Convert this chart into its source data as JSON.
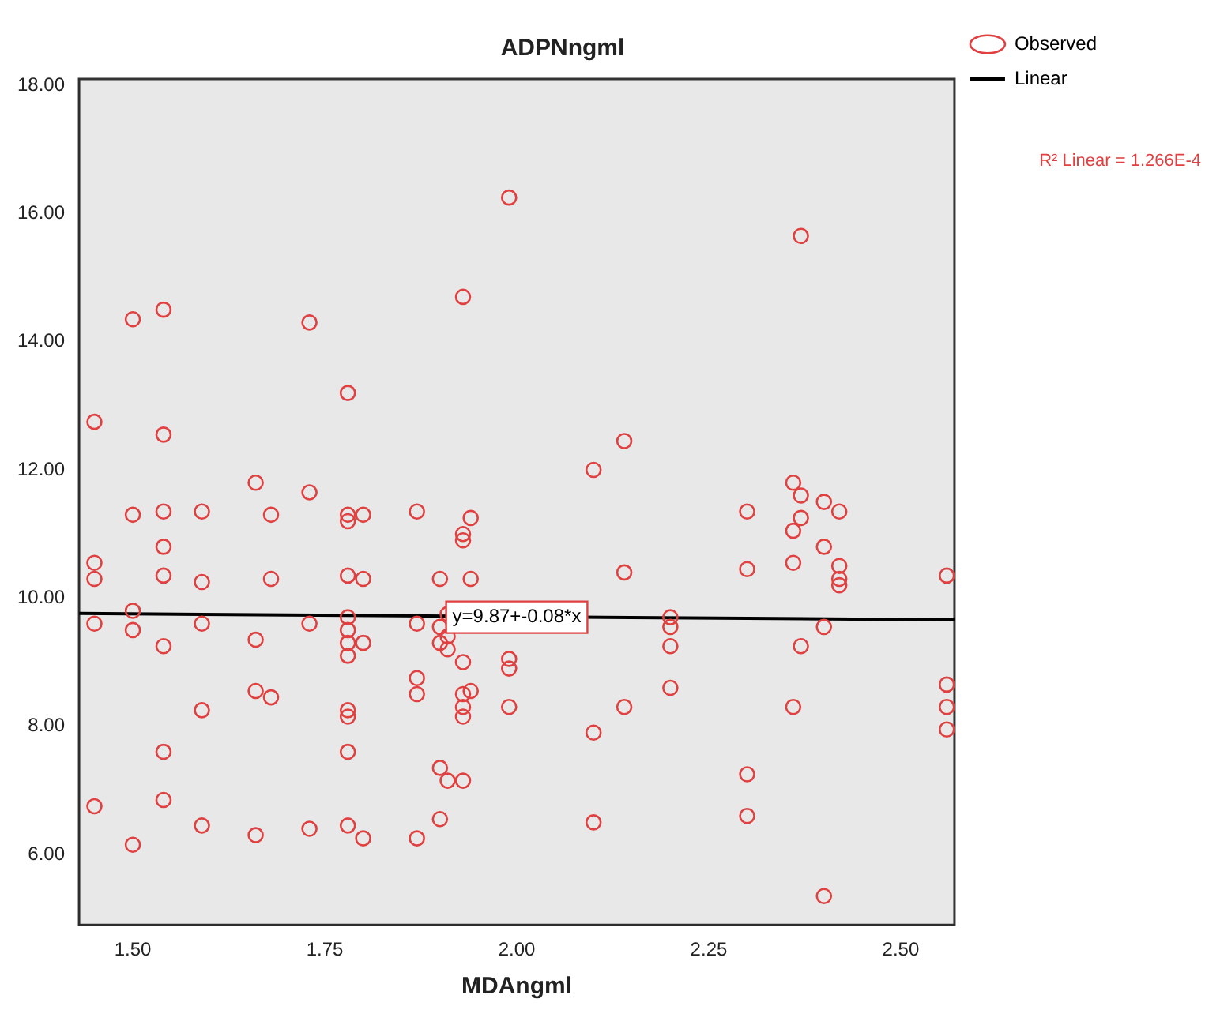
{
  "chart_data": {
    "type": "scatter",
    "title": "ADPNngml",
    "xlabel": "MDAngml",
    "xlim": [
      1.43,
      2.57
    ],
    "ylim": [
      4.9,
      18.1
    ],
    "xticks": [
      {
        "value": 1.5,
        "label": "1.50"
      },
      {
        "value": 1.75,
        "label": "1.75"
      },
      {
        "value": 2,
        "label": "2.00"
      },
      {
        "value": 2.25,
        "label": "2.25"
      },
      {
        "value": 2.5,
        "label": "2.50"
      }
    ],
    "yticks": [
      {
        "value": 6,
        "label": "6.00"
      },
      {
        "value": 8,
        "label": "8.00"
      },
      {
        "value": 10,
        "label": "10.00"
      },
      {
        "value": 12,
        "label": "12.00"
      },
      {
        "value": 14,
        "label": "14.00"
      },
      {
        "value": 16,
        "label": "16.00"
      },
      {
        "value": 18,
        "label": "18.00"
      }
    ],
    "grid": false,
    "legend": "top right",
    "annotations": [
      {
        "text": "y=9.87+-0.08*x",
        "x": 2.0,
        "y": 9.7
      },
      "R² Linear = 1.266E-4"
    ],
    "series": [
      {
        "name": "Observed",
        "type": "scatter",
        "marker": "circle",
        "color": "#e04040",
        "x": [
          1.45,
          1.45,
          1.45,
          1.45,
          1.45,
          1.5,
          1.5,
          1.5,
          1.5,
          1.5,
          1.54,
          1.54,
          1.54,
          1.54,
          1.54,
          1.54,
          1.54,
          1.54,
          1.59,
          1.59,
          1.59,
          1.59,
          1.59,
          1.66,
          1.66,
          1.66,
          1.66,
          1.68,
          1.68,
          1.68,
          1.73,
          1.73,
          1.73,
          1.73,
          1.78,
          1.78,
          1.78,
          1.78,
          1.78,
          1.78,
          1.78,
          1.78,
          1.78,
          1.78,
          1.78,
          1.78,
          1.8,
          1.8,
          1.8,
          1.8,
          1.87,
          1.87,
          1.87,
          1.87,
          1.87,
          1.9,
          1.9,
          1.9,
          1.9,
          1.9,
          1.91,
          1.91,
          1.91,
          1.91,
          1.93,
          1.93,
          1.93,
          1.93,
          1.93,
          1.93,
          1.93,
          1.93,
          1.94,
          1.94,
          1.94,
          1.99,
          1.99,
          1.99,
          1.99,
          2.1,
          2.1,
          2.1,
          2.14,
          2.14,
          2.14,
          2.2,
          2.2,
          2.2,
          2.2,
          2.3,
          2.3,
          2.3,
          2.3,
          2.36,
          2.36,
          2.36,
          2.36,
          2.37,
          2.37,
          2.37,
          2.37,
          2.4,
          2.4,
          2.4,
          2.4,
          2.42,
          2.42,
          2.42,
          2.42,
          2.56,
          2.56,
          2.56,
          2.56
        ],
        "values": [
          12.75,
          10.55,
          10.3,
          9.6,
          6.75,
          14.35,
          11.3,
          9.8,
          9.5,
          6.15,
          14.5,
          12.55,
          11.35,
          10.8,
          10.35,
          9.25,
          7.6,
          6.85,
          11.35,
          10.25,
          9.6,
          8.25,
          6.45,
          11.8,
          9.35,
          8.55,
          6.3,
          11.3,
          10.3,
          8.45,
          14.3,
          11.65,
          9.6,
          6.4,
          13.2,
          11.3,
          11.2,
          10.35,
          9.7,
          9.5,
          9.3,
          9.1,
          8.25,
          8.15,
          7.6,
          6.45,
          11.3,
          10.3,
          9.3,
          6.25,
          11.35,
          9.6,
          8.75,
          8.5,
          6.25,
          10.3,
          9.55,
          9.3,
          7.35,
          6.55,
          9.75,
          9.4,
          9.2,
          7.15,
          14.7,
          11.0,
          10.9,
          9.0,
          8.5,
          8.3,
          8.15,
          7.15,
          11.25,
          10.3,
          8.55,
          16.25,
          9.05,
          8.9,
          8.3,
          12.0,
          7.9,
          6.5,
          12.45,
          10.4,
          8.3,
          9.7,
          9.55,
          9.25,
          8.6,
          11.35,
          10.45,
          7.25,
          6.6,
          11.8,
          11.05,
          10.55,
          8.3,
          15.65,
          11.6,
          11.25,
          9.25,
          11.5,
          10.8,
          9.55,
          5.35,
          11.35,
          10.5,
          10.3,
          10.2,
          10.35,
          8.65,
          8.3,
          7.95
        ]
      },
      {
        "name": "Linear",
        "type": "line",
        "marker": "none",
        "color": "#000000",
        "x": [
          1.43,
          2.57
        ],
        "values": [
          9.76,
          9.66
        ]
      }
    ]
  }
}
